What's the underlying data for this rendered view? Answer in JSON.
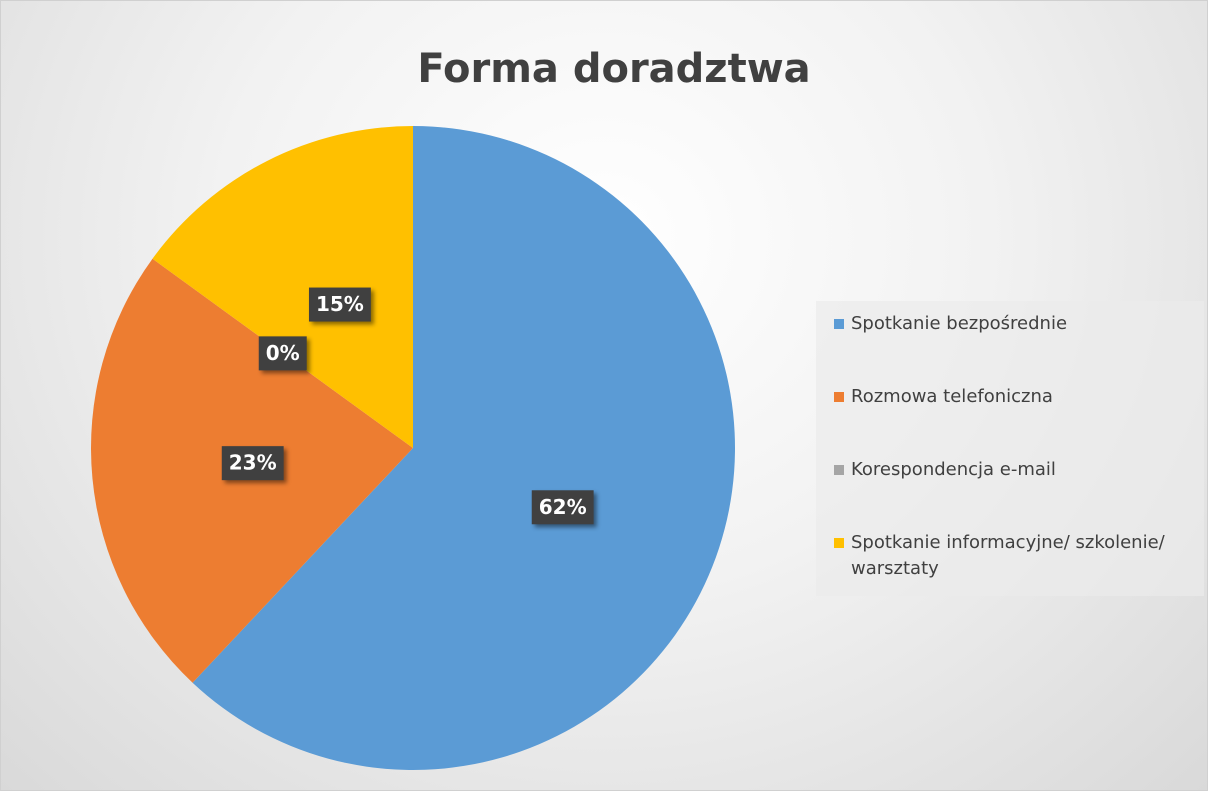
{
  "chart_data": {
    "type": "pie",
    "title": "Forma doradztwa",
    "categories": [
      "Spotkanie bezpośrednie",
      "Rozmowa telefoniczna",
      "Korespondencja e-mail",
      "Spotkanie informacyjne/ szkolenie/ warsztaty"
    ],
    "values": [
      62,
      23,
      0,
      15
    ],
    "value_labels": [
      "62%",
      "23%",
      "0%",
      "15%"
    ],
    "colors": [
      "#5b9bd5",
      "#ed7d31",
      "#a5a5a5",
      "#ffc000"
    ],
    "legend": "right"
  }
}
